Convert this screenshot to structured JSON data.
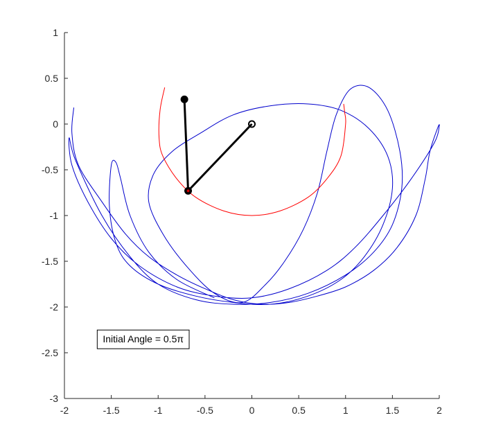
{
  "chart_data": {
    "type": "line",
    "title": "",
    "xlabel": "",
    "ylabel": "",
    "xlim": [
      -2,
      2
    ],
    "ylim": [
      -3,
      1
    ],
    "xticks": [
      -2,
      -1.5,
      -1,
      -0.5,
      0,
      0.5,
      1,
      1.5,
      2
    ],
    "xtick_labels": [
      "-2",
      "-1.5",
      "-1",
      "-0.5",
      "0",
      "0.5",
      "1",
      "1.5",
      "2"
    ],
    "yticks": [
      -3,
      -2.5,
      -2,
      -1.5,
      -1,
      -0.5,
      0,
      0.5,
      1
    ],
    "ytick_labels": [
      "-3",
      "-2.5",
      "-2",
      "-1.5",
      "-1",
      "-0.5",
      "0",
      "0.5",
      "1"
    ],
    "grid": false,
    "annotation": {
      "text": "Initial Angle = 0.5π",
      "x": -1.65,
      "y": -2.35
    },
    "series": [
      {
        "role": "trace",
        "color": "#0000cc",
        "points": [
          [
            -1.9,
            0.18
          ],
          [
            -1.92,
            -0.1
          ],
          [
            -1.85,
            -0.45
          ],
          [
            -1.6,
            -0.85
          ],
          [
            -1.35,
            -1.2
          ],
          [
            -1.1,
            -1.45
          ],
          [
            -0.8,
            -1.65
          ],
          [
            -0.5,
            -1.8
          ],
          [
            -0.2,
            -1.92
          ],
          [
            0.1,
            -1.97
          ],
          [
            0.4,
            -1.95
          ],
          [
            0.7,
            -1.88
          ],
          [
            1.0,
            -1.78
          ],
          [
            1.3,
            -1.6
          ],
          [
            1.55,
            -1.35
          ],
          [
            1.75,
            -1.0
          ],
          [
            1.85,
            -0.6
          ],
          [
            1.9,
            -0.3
          ],
          [
            1.98,
            -0.05
          ],
          [
            2.0,
            -0.02
          ],
          [
            1.95,
            -0.2
          ],
          [
            1.7,
            -0.6
          ],
          [
            1.4,
            -1.0
          ],
          [
            1.1,
            -1.35
          ],
          [
            0.8,
            -1.6
          ],
          [
            0.4,
            -1.8
          ],
          [
            0.0,
            -1.9
          ],
          [
            -0.4,
            -1.88
          ],
          [
            -0.8,
            -1.78
          ],
          [
            -1.2,
            -1.55
          ],
          [
            -1.5,
            -1.25
          ],
          [
            -1.75,
            -0.85
          ],
          [
            -1.92,
            -0.45
          ],
          [
            -1.95,
            -0.15
          ],
          [
            -1.88,
            -0.4
          ],
          [
            -1.6,
            -1.0
          ],
          [
            -1.3,
            -1.45
          ],
          [
            -1.0,
            -1.75
          ],
          [
            -0.6,
            -1.92
          ],
          [
            -0.2,
            -1.97
          ],
          [
            0.2,
            -1.95
          ],
          [
            0.6,
            -1.85
          ],
          [
            1.0,
            -1.65
          ],
          [
            1.3,
            -1.4
          ],
          [
            1.5,
            -1.1
          ],
          [
            1.6,
            -0.7
          ],
          [
            1.58,
            -0.3
          ],
          [
            1.45,
            0.15
          ],
          [
            1.25,
            0.4
          ],
          [
            1.05,
            0.38
          ],
          [
            0.9,
            0.1
          ],
          [
            0.8,
            -0.3
          ],
          [
            0.7,
            -0.75
          ],
          [
            0.55,
            -1.15
          ],
          [
            0.35,
            -1.5
          ],
          [
            0.15,
            -1.75
          ],
          [
            -0.1,
            -1.95
          ],
          [
            -0.4,
            -1.85
          ],
          [
            -0.7,
            -1.55
          ],
          [
            -0.95,
            -1.2
          ],
          [
            -1.1,
            -0.85
          ],
          [
            -1.05,
            -0.55
          ],
          [
            -0.85,
            -0.3
          ],
          [
            -0.55,
            -0.1
          ],
          [
            -0.2,
            0.1
          ],
          [
            0.2,
            0.2
          ],
          [
            0.6,
            0.22
          ],
          [
            0.95,
            0.15
          ],
          [
            1.25,
            -0.05
          ],
          [
            1.45,
            -0.35
          ],
          [
            1.5,
            -0.7
          ],
          [
            1.4,
            -1.1
          ],
          [
            1.2,
            -1.45
          ],
          [
            0.95,
            -1.7
          ],
          [
            0.6,
            -1.88
          ],
          [
            0.2,
            -1.97
          ],
          [
            -0.2,
            -1.95
          ],
          [
            -0.6,
            -1.88
          ],
          [
            -1.0,
            -1.75
          ],
          [
            -1.3,
            -1.55
          ],
          [
            -1.45,
            -1.3
          ],
          [
            -1.52,
            -0.9
          ],
          [
            -1.5,
            -0.45
          ],
          [
            -1.45,
            -0.42
          ],
          [
            -1.4,
            -0.6
          ],
          [
            -1.3,
            -1.0
          ],
          [
            -1.1,
            -1.4
          ],
          [
            -0.8,
            -1.7
          ],
          [
            -0.4,
            -1.9
          ]
        ]
      },
      {
        "role": "arc",
        "color": "#ff0000",
        "points": [
          [
            -0.93,
            0.4
          ],
          [
            -0.98,
            0.15
          ],
          [
            -0.99,
            -0.15
          ],
          [
            -0.95,
            -0.35
          ],
          [
            -0.8,
            -0.6
          ],
          [
            -0.6,
            -0.8
          ],
          [
            -0.3,
            -0.95
          ],
          [
            0.0,
            -1.0
          ],
          [
            0.3,
            -0.95
          ],
          [
            0.6,
            -0.8
          ],
          [
            0.8,
            -0.6
          ],
          [
            0.95,
            -0.35
          ],
          [
            1.0,
            0.0
          ],
          [
            0.99,
            0.13
          ],
          [
            0.98,
            0.22
          ]
        ]
      }
    ],
    "pendulum": {
      "pivot": [
        0,
        0
      ],
      "bob1": [
        -0.68,
        -0.73
      ],
      "bob2": [
        -0.72,
        0.27
      ]
    }
  }
}
